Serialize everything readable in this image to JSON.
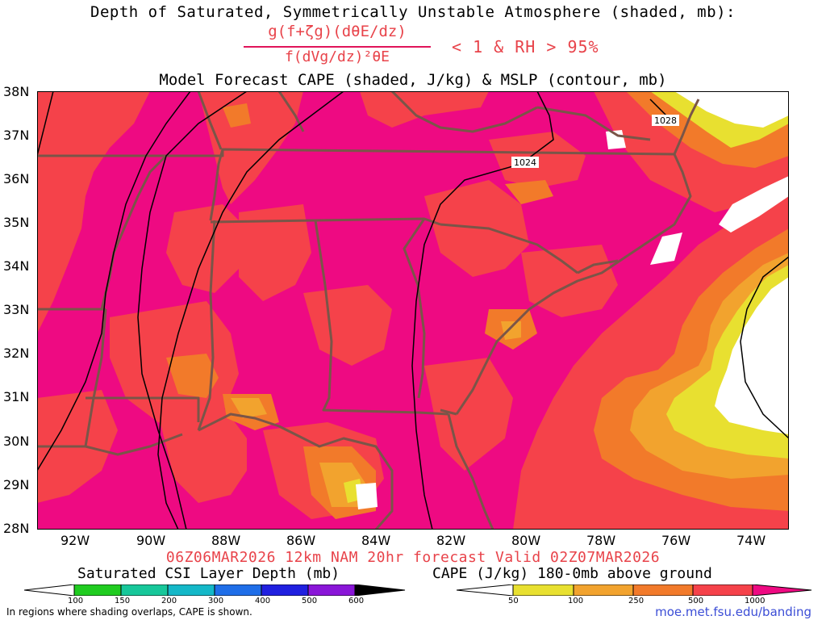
{
  "header": {
    "title_line1": "Depth of Saturated, Symmetrically Unstable Atmosphere (shaded, mb):",
    "fraction_numerator": "g(f+ζg)(dθE/dz)",
    "fraction_denominator": "f(dVg/dz)²θE",
    "condition": "< 1 & RH > 95%",
    "title_line2": "Model Forecast CAPE (shaded, J/kg) & MSLP (contour, mb)"
  },
  "map": {
    "lat_labels": [
      "38N",
      "37N",
      "36N",
      "35N",
      "34N",
      "33N",
      "32N",
      "31N",
      "30N",
      "29N",
      "28N"
    ],
    "lon_labels": [
      "92W",
      "90W",
      "88W",
      "86W",
      "84W",
      "82W",
      "80W",
      "78W",
      "76W",
      "74W"
    ],
    "isobar_labels": [
      "1024",
      "1028"
    ],
    "colors": {
      "cape_gt_1000": "#ee0a82",
      "cape_500_1000": "#f5424a",
      "cape_250_500": "#f27a2a",
      "cape_100_250": "#f2a32e",
      "cape_50_100": "#e8e030",
      "state_borders": "#7a5548",
      "isobars": "#000000"
    }
  },
  "footer": {
    "forecast_line": "06Z06MAR2026 12km NAM 20hr forecast Valid 02Z07MAR2026",
    "csi_legend_title": "Saturated CSI Layer Depth (mb)",
    "csi_ticks": [
      "100",
      "150",
      "200",
      "300",
      "400",
      "500",
      "600"
    ],
    "csi_colors": [
      "#ffffff",
      "#20cc20",
      "#17c79a",
      "#14b8c8",
      "#1f6ee8",
      "#2020e0",
      "#8a16d8",
      "#000000"
    ],
    "cape_legend_title": "CAPE (J/kg) 180-0mb above ground",
    "cape_ticks": [
      "50",
      "100",
      "250",
      "500",
      "1000"
    ],
    "cape_colors": [
      "#ffffff",
      "#e8e030",
      "#f2a32e",
      "#f27a2a",
      "#f5424a",
      "#ee0a82"
    ],
    "note": "In regions where shading overlaps, CAPE is shown.",
    "credit": "moe.met.fsu.edu/banding"
  }
}
